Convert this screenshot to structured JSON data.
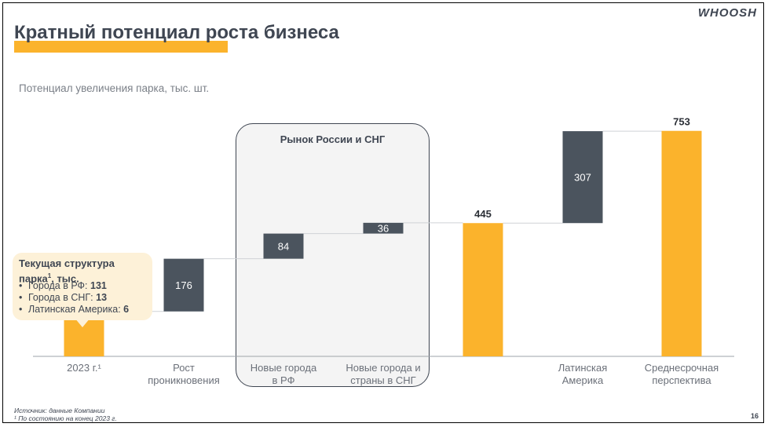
{
  "header": {
    "title": "Кратный потенциал роста бизнеса",
    "logo": "WHOOSH",
    "subtitle": "Потенциал увеличения парка, тыс. шт."
  },
  "callout": {
    "title_line1": "Текущая структура",
    "title_line2_main": "парка",
    "title_line2_sup": "1",
    "title_line2_end": ", тыс.",
    "items": [
      {
        "label": "Города в РФ: ",
        "value": "131"
      },
      {
        "label": "Города в СНГ: ",
        "value": "13"
      },
      {
        "label": "Латинская Америка: ",
        "value": "6"
      }
    ]
  },
  "region_box": {
    "label": "Рынок России и СНГ"
  },
  "footer": {
    "source": "Источник: данные Компании",
    "note": "¹ По состоянию на конец 2023 г.",
    "page": "16"
  },
  "colors": {
    "total": "#fbb32c",
    "increment": "#4b545e",
    "connector": "#cfd2d6",
    "axis": "#9ea3a9"
  },
  "chart_data": {
    "type": "bar",
    "subtype": "waterfall",
    "title": "Потенциал увеличения парка, тыс. шт.",
    "ylim": [
      0,
      800
    ],
    "bars": [
      {
        "category": [
          "2023 г.¹"
        ],
        "value": 150,
        "kind": "total"
      },
      {
        "category": [
          "Рост",
          "проникновения"
        ],
        "value": 176,
        "kind": "increment"
      },
      {
        "category": [
          "Новые города",
          "в РФ"
        ],
        "value": 84,
        "kind": "increment"
      },
      {
        "category": [
          "Новые города и",
          "страны в СНГ"
        ],
        "value": 36,
        "kind": "increment"
      },
      {
        "category": [
          ""
        ],
        "value": 445,
        "kind": "total"
      },
      {
        "category": [
          "Латинская",
          "Америка"
        ],
        "value": 307,
        "kind": "increment"
      },
      {
        "category": [
          "Среднесрочная",
          "перспектива"
        ],
        "value": 753,
        "kind": "total"
      }
    ]
  }
}
